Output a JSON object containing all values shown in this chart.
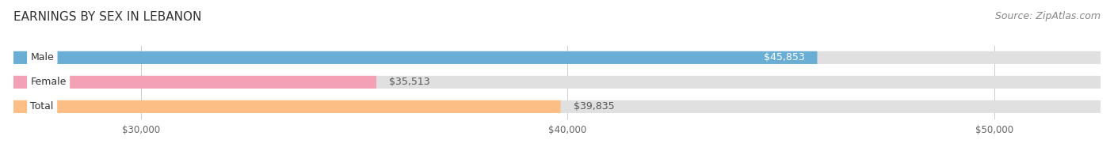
{
  "title": "EARNINGS BY SEX IN LEBANON",
  "source": "Source: ZipAtlas.com",
  "categories": [
    "Male",
    "Female",
    "Total"
  ],
  "values": [
    45853,
    35513,
    39835
  ],
  "bar_colors": [
    "#6aaed6",
    "#f4a0b5",
    "#fdbe85"
  ],
  "track_color": "#e0e0e0",
  "xmin": 27000,
  "xmax": 52500,
  "xticks": [
    30000,
    40000,
    50000
  ],
  "xtick_labels": [
    "$30,000",
    "$40,000",
    "$50,000"
  ],
  "title_fontsize": 11,
  "source_fontsize": 9,
  "bar_label_fontsize": 9,
  "cat_label_fontsize": 9
}
